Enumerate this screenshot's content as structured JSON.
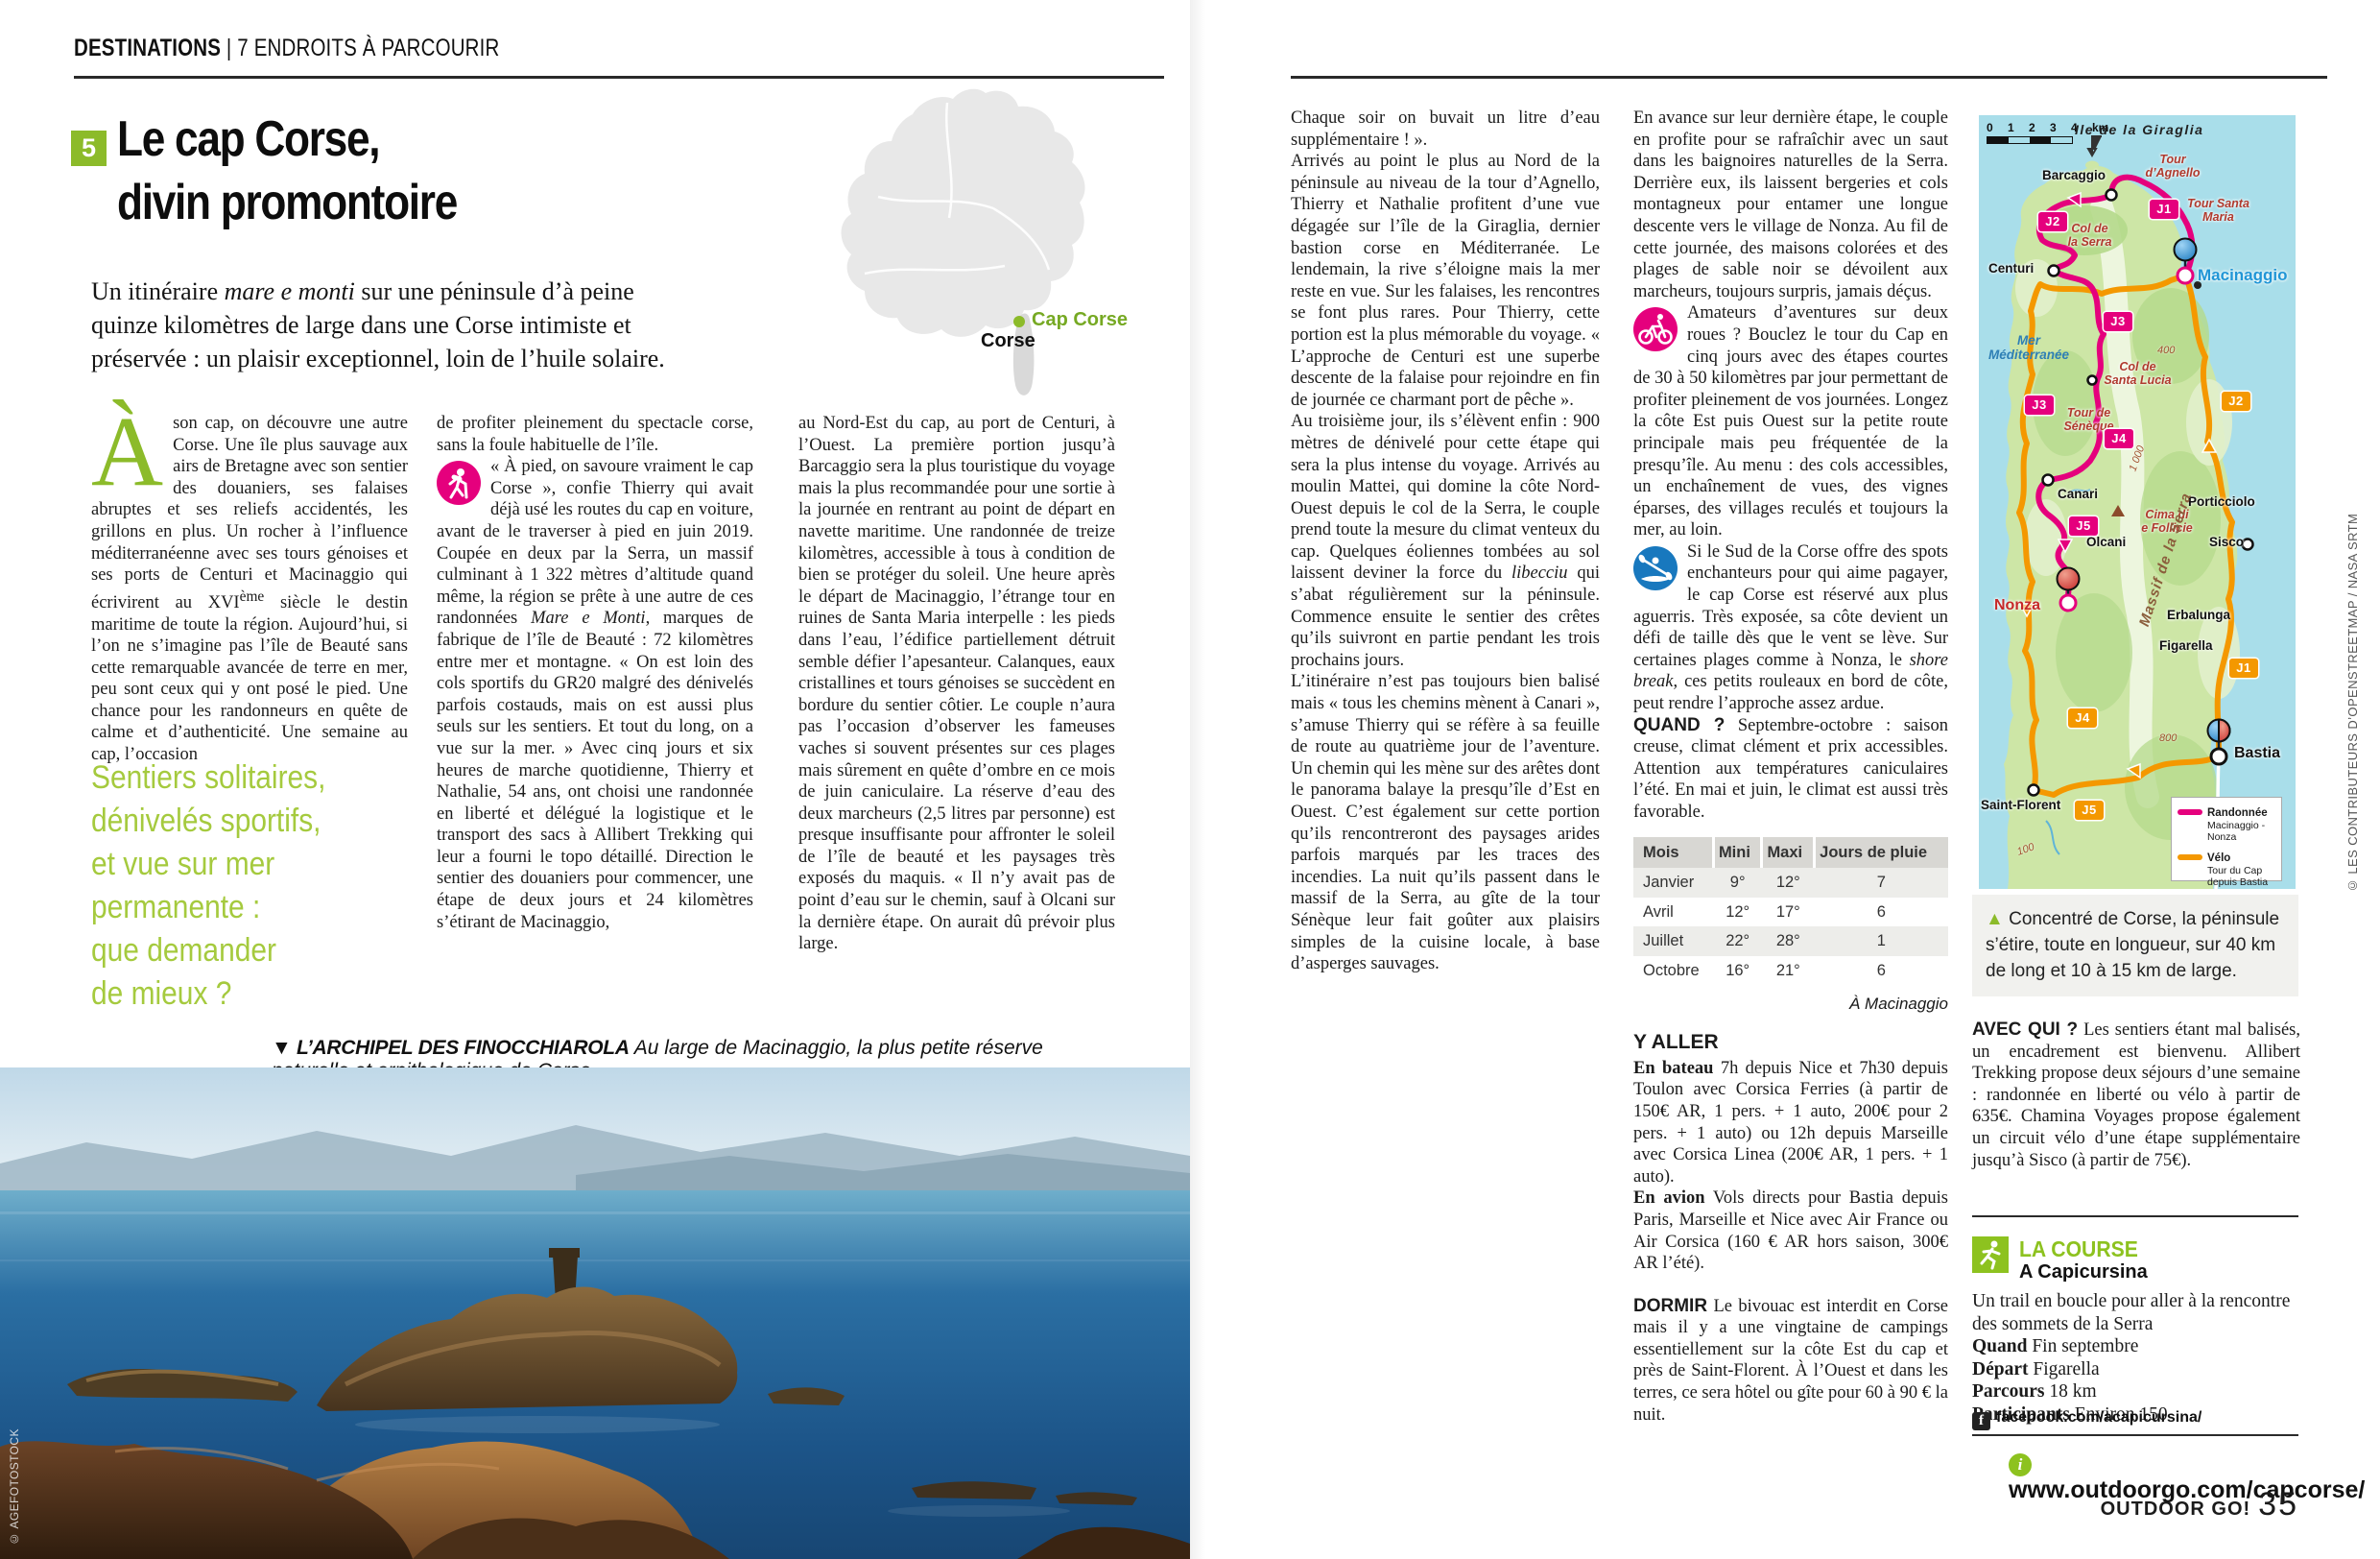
{
  "accent_colors": {
    "green": "#8CBB2A",
    "quote_green": "#A5CA3E",
    "pink": "#E5007D",
    "orange": "#F49800",
    "map_sea": "#A9DEEA"
  },
  "header": {
    "kicker_bold": "DESTINATIONS",
    "kicker_rest": " | 7 ENDROITS À PARCOURIR"
  },
  "title": {
    "badge": "5",
    "line1": "Le cap Corse,",
    "line2": "divin promontoire"
  },
  "intro_html": "Un itinéraire <i>mare e monti</i> sur une péninsule d’à peine quinze kilomètres de large dans une Corse intimiste et préservée : un plaisir exceptionnel, loin de l’huile solaire.",
  "article": {
    "dropcap": "À",
    "col1_html": "son cap, on découvre une autre Corse. Une île plus sauvage aux airs de Bretagne avec son sentier des douaniers, ses falaises abruptes et ses reliefs accidentés, les grillons en plus. Un rocher à l’influence méditerranéenne avec ses tours génoises et ses ports de Centuri et Macinaggio qui écrivirent au XVI<sup>ème</sup> siècle le destin maritime de toute la région. Aujourd’hui, si l’on ne s’imagine pas l’île de Beauté sans cette remarquable avancée de terre en mer, peu sont ceux qui y ont posé le pied. Une chance pour les randonneurs en quête de calme et d’authenticité. Une semaine au cap, l’occasion",
    "pullquote": "Sentiers solitaires,\ndénivelés sportifs,\net vue sur mer\npermanente :\nque demander\nde mieux ?",
    "col2_p1": "de profiter pleinement du spectacle corse, sans la foule habituelle de l’île.",
    "col2_p2_html": "« À pied, on savoure vraiment le cap Corse », confie Thierry qui avait déjà usé les routes du cap en voiture, avant de le traverser à pied en juin 2019. Coupée en deux par la Serra, un massif culminant à 1 322 mètres d’altitude quand même, la région se prête à une autre de ces randonnées <i>Mare e Monti</i>, marques de fabrique de l’île de Beauté : 72 kilomètres entre mer et montagne. « On est loin des cols sportifs du GR20 malgré des dénivelés parfois costauds, mais on est aussi plus seuls sur les sentiers. Et tout du long, on a vue sur la mer. » Avec cinq jours et six heures de marche quotidienne, Thierry et Nathalie, 54 ans, ont choisi une randonnée en liberté et délégué la logistique et le transport des sacs à Allibert Trekking qui leur a fourni le topo détaillé. Direction le sentier des douaniers pour commencer, une étape de deux jours et 24 kilomètres s’étirant de Macinaggio,",
    "col3_html": "au Nord-Est du cap, au port de Centuri, à l’Ouest. La première portion jusqu’à Barcaggio sera la plus touristique du voyage mais la plus recommandée pour une sortie à la journée en rentrant au point de départ en navette maritime. Une randonnée de treize kilomètres, accessible à tous à condition de bien se protéger du soleil. Une heure après le départ de Macinaggio, l’étrange tour en ruines de Santa Maria interpelle : les pieds dans l’eau, l’édifice partiellement détruit semble défier l’apesanteur. Calanques, eaux cristallines et tours génoises se succèdent en bordure du sentier côtier. Le couple n’aura pas l’occasion d’observer les fameuses vaches si souvent présentes sur ces plages mais sûrement en quête d’ombre en ce mois de juin caniculaire. La réserve d’eau des deux marcheurs (2,5 litres par personne) est presque insuffisante pour affronter le soleil de l’île de beauté et les paysages très exposés du maquis. « Il n’y avait pas de point d’eau sur le chemin, sauf à Olcani sur la dernière étape. On aurait dû prévoir plus large.",
    "col4_p1": "Chaque soir on buvait un litre d’eau supplémentaire ! ».",
    "col4_p2": "Arrivés au point le plus au Nord de la péninsule au niveau de la tour d’Agnello, Thierry et Nathalie profitent d’une vue dégagée sur l’île de la Giraglia, dernier bastion corse en Méditerranée. Le lendemain, la rive s’éloigne mais la mer reste en vue. Sur les falaises, les rencontres se font plus rares. Pour Thierry, cette portion est la plus mémorable du voyage. « L’approche de Centuri est une superbe descente de la falaise pour rejoindre en fin de journée ce charmant port de pêche ».",
    "col4_p3_html": "Au troisième jour, ils s’élèvent enfin : 900 mètres de dénivelé pour cette étape qui sera la plus intense du voyage. Arrivés au moulin Mattei, qui domine la côte Nord-Ouest depuis le col de la Serra, le couple prend toute la mesure du climat venteux du cap. Quelques éoliennes tombées au sol laissent deviner la force du <i>libecciu</i> qui s’abat régulièrement sur la péninsule. Commence ensuite le sentier des crêtes qu’ils suivront en partie pendant les trois prochains jours.",
    "col4_p4": "L’itinéraire n’est pas toujours bien balisé mais « tous les chemins mènent à Canari », s’amuse Thierry qui se réfère à sa feuille de route au quatrième jour de l’aventure. Un chemin qui les mène sur des arêtes dont le panorama balaye la presqu’île d’Est en Ouest. C’est également sur cette portion qu’ils rencontreront des paysages arides parfois marqués par les traces des incendies. La nuit qu’ils passent dans le massif de la Serra, au gîte de la tour Sénèque leur fait goûter aux plaisirs simples de la cuisine locale, à base d’asperges sauvages.",
    "col5_p1": "En avance sur leur dernière étape, le couple en profite pour se rafraîchir avec un saut dans les baignoires naturelles de la Serra. Derrière eux, ils laissent bergeries et cols montagneux pour entamer une longue descente vers le village de Nonza. Au fil de cette journée, des maisons colorées et des plages de sable noir se dévoilent aux marcheurs, toujours surpris, jamais déçus.",
    "bike_para": "Amateurs d’aventures sur deux roues ? Bouclez le tour du Cap en cinq jours avec des étapes courtes de 30 à 50 kilomètres par jour permettant de profiter pleinement de vos journées. Longez la côte Est puis Ouest sur la petite route principale mais peu fréquentée de la presqu’île. Au menu : des cols accessibles, un enchaînement de vues, des vignes éparses, des villages reculés et toujours la mer, au loin.",
    "kayak_para_html": "Si le Sud de la Corse offre des spots enchanteurs pour qui aime pagayer, le cap Corse est réservé aux plus aguerris. Très exposée, sa côte devient un défi de taille dès que le vent se lève. Sur certaines plages comme à Nonza, le <i>shore break</i>, ces petits rouleaux en bord de côte, peut rendre l’approche assez ardue.",
    "quand_html": "<b class='lead sans'>QUAND ?</b> Septembre-octobre : saison creuse, climat clément et prix accessibles. Attention aux températures caniculaires l’été. En mai et juin, le climat est aussi très favorable."
  },
  "weather": {
    "headers": [
      "Mois",
      "Mini",
      "Maxi",
      "Jours de pluie"
    ],
    "rows": [
      [
        "Janvier",
        "9°",
        "12°",
        "7"
      ],
      [
        "Avril",
        "12°",
        "17°",
        "6"
      ],
      [
        "Juillet",
        "22°",
        "28°",
        "1"
      ],
      [
        "Octobre",
        "16°",
        "21°",
        "6"
      ]
    ],
    "footnote": "À Macinaggio"
  },
  "y_aller": {
    "title": "Y ALLER",
    "boat_html": "<b>En bateau</b> 7h depuis Nice et 7h30 depuis Toulon avec Corsica Ferries (à partir de 150€ AR, 1 pers. + 1 auto, 200€ pour 2 pers. + 1 auto) ou 12h depuis Marseille avec Corsica Linea (200€ AR, 1 pers. + 1 auto).",
    "plane_html": "<b>En avion</b> Vols directs pour Bastia depuis Paris, Marseille et Nice avec Air France ou Air Corsica (160 € AR hors saison, 300€ AR l’été)."
  },
  "dormir_html": "<b class='lead sans'>DORMIR</b> Le bivouac est interdit en Corse mais il y a une vingtaine de campings essentiellement sur la côte Est du cap et près de Saint-Florent. À l’Ouest et dans les terres, ce sera hôtel ou gîte pour 60 à 90 € la nuit.",
  "avec_qui_html": "<b class='lead sans'>AVEC QUI ?</b> Les sentiers étant mal balisés, un encadrement est bienvenu. Allibert Trekking propose deux séjours d’une semaine : randonnée en liberté ou vélo à partir de 635€. Chamina Voyages propose également un circuit vélo d’une étape supplémentaire jusqu’à Sisco (à partir de 75€).",
  "photo": {
    "caption_label": "▼ L’ARCHIPEL DES FINOCCHIAROLA",
    "caption_text": " Au large de Macinaggio, la plus petite réserve naturelle et ornithologique de Corse.",
    "credit": "© AGEFOTOSTOCK"
  },
  "france_map": {
    "cap_corse": "Cap Corse",
    "corse": "Corse"
  },
  "map": {
    "scale": {
      "t0": "0",
      "t1": "1",
      "t2": "2",
      "t3": "3",
      "t4": "4",
      "unit": "km"
    },
    "island_callout": "Ile de la Giraglia",
    "sea_label": "Mer\nMéditerranée",
    "massif": "Massif de la Serra",
    "towns": {
      "barcaggio": "Barcaggio",
      "centuri": "Centuri",
      "macinaggio": "Macinaggio",
      "canari": "Canari",
      "porticciolo": "Porticciolo",
      "olcani": "Olcani",
      "sisco": "Sisco",
      "nonza": "Nonza",
      "erbalunga": "Erbalunga",
      "figarella": "Figarella",
      "saint_florent": "Saint-Florent",
      "bastia": "Bastia"
    },
    "poi": {
      "tour_agnello": "Tour\nd’Agnello",
      "tour_santa_maria": "Tour Santa\nMaria",
      "col_serra": "Col de\nla Serra",
      "col_santa_lucia": "Col de\nSanta Lucia",
      "tour_seneque": "Tour de\nSénèque",
      "cima": "Cima di\ne Follicie"
    },
    "contours": {
      "c400": "400",
      "c1000": "1 000",
      "c800": "800",
      "c100": "100"
    },
    "stages": {
      "j1": "J1",
      "j2": "J2",
      "j3": "J3",
      "j4": "J4",
      "j5": "J5"
    },
    "legend": {
      "hike": "Randonnée",
      "hike_sub": "Macinaggio - Nonza",
      "bike": "Vélo",
      "bike_sub": "Tour du Cap\ndepuis Bastia"
    },
    "credit": "© LES CONTRIBUTEURS D’OPENSTREETMAP / NASA SRTM",
    "caption": " Concentré de Corse, la péninsule s’étire, toute en longueur, sur 40 km de long et 10 à 15 km de large."
  },
  "course": {
    "title": "LA COURSE",
    "name": "A Capicursina",
    "desc": "Un trail en boucle pour aller à la rencontre des sommets de la Serra",
    "items": [
      {
        "label": "Quand",
        "value": "Fin septembre"
      },
      {
        "label": "Départ",
        "value": "Figarella"
      },
      {
        "label": "Parcours",
        "value": "18 km"
      },
      {
        "label": "Participants",
        "value": "Environ 150"
      }
    ],
    "facebook": "facebook.com/acapicursina/"
  },
  "footer": {
    "url": "www.outdoorgo.com/capcorse/",
    "magazine": "OUTDOOR GO!",
    "page": "35"
  }
}
